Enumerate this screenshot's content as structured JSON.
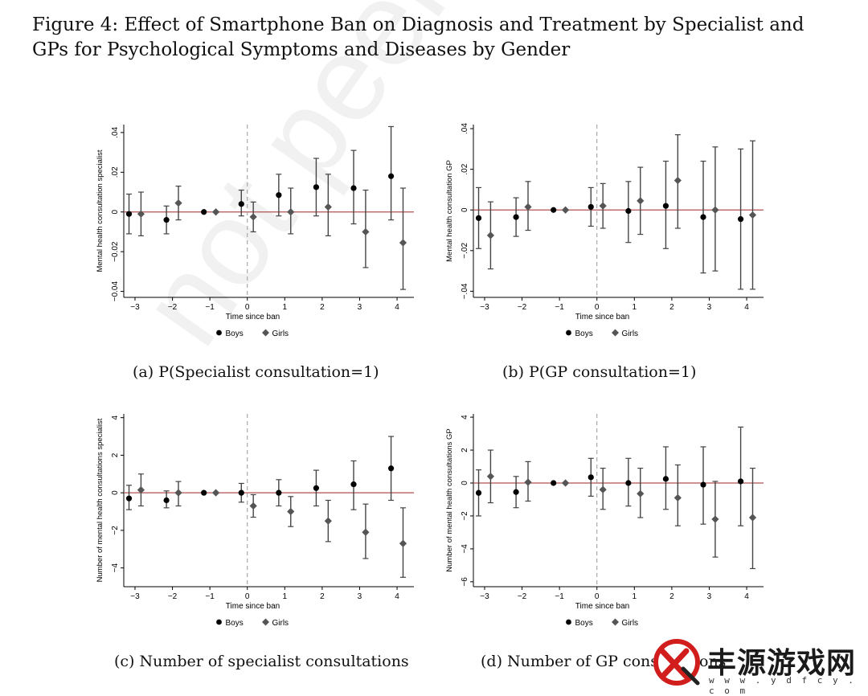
{
  "figure_title": "Figure 4: Effect of Smartphone Ban on Diagnosis and Treatment by Specialist and GPs for Psychological Symptoms and Diseases by Gender",
  "watermark": "not peer review",
  "logo": {
    "text": "丰源游戏网",
    "url": "w w w . y d f c y . c o m"
  },
  "colors": {
    "boys": "#000000",
    "girls": "#555555",
    "zero_line": "#b05050",
    "ban_line": "#999999",
    "ci": "#444444"
  },
  "chart_data": [
    {
      "type": "scatter",
      "caption": "(a) P(Specialist consultation=1)",
      "xlabel": "Time since ban",
      "ylabel": "Mental health consultation specialist",
      "x_ticks": [
        -3,
        -2,
        -1,
        0,
        1,
        2,
        3,
        4
      ],
      "y_ticks": [
        -0.04,
        -0.02,
        0,
        0.02,
        0.04
      ],
      "y_tick_labels": [
        "−0.04",
        "−0.02",
        "0",
        ".02",
        ".04"
      ],
      "ylim": [
        -0.043,
        0.044
      ],
      "legend_placement": "bottom",
      "series": [
        {
          "name": "Boys",
          "marker": "circle",
          "x": [
            -3,
            -2,
            -1,
            0,
            1,
            2,
            3,
            4
          ],
          "y": [
            -0.001,
            -0.004,
            0.0,
            0.004,
            0.0085,
            0.0125,
            0.012,
            0.018
          ],
          "lo": [
            -0.011,
            -0.011,
            0.0,
            -0.002,
            -0.002,
            -0.002,
            -0.006,
            -0.004
          ],
          "hi": [
            0.009,
            0.003,
            0.0,
            0.011,
            0.019,
            0.027,
            0.031,
            0.043
          ]
        },
        {
          "name": "Girls",
          "marker": "diamond",
          "x": [
            -3,
            -2,
            -1,
            0,
            1,
            2,
            3,
            4
          ],
          "y": [
            -0.001,
            0.0045,
            0.0,
            -0.0025,
            0.0,
            0.0025,
            -0.01,
            -0.0155
          ],
          "lo": [
            -0.012,
            -0.004,
            0.0,
            -0.01,
            -0.011,
            -0.012,
            -0.028,
            -0.039
          ],
          "hi": [
            0.01,
            0.013,
            0.0,
            0.005,
            0.012,
            0.019,
            0.011,
            0.012
          ]
        }
      ]
    },
    {
      "type": "scatter",
      "caption": "(b) P(GP consultation=1)",
      "xlabel": "Time since ban",
      "ylabel": "Mental health consultation GP",
      "x_ticks": [
        -3,
        -2,
        -1,
        0,
        1,
        2,
        3,
        4
      ],
      "y_ticks": [
        -0.04,
        -0.02,
        0,
        0.02,
        0.04
      ],
      "y_tick_labels": [
        "−.04",
        "−.02",
        "0",
        ".02",
        ".04"
      ],
      "ylim": [
        -0.043,
        0.042
      ],
      "legend_placement": "bottom",
      "series": [
        {
          "name": "Boys",
          "marker": "circle",
          "x": [
            -3,
            -2,
            -1,
            0,
            1,
            2,
            3,
            4
          ],
          "y": [
            -0.004,
            -0.0035,
            0.0,
            0.0015,
            -0.0005,
            0.002,
            -0.0035,
            -0.0045
          ],
          "lo": [
            -0.019,
            -0.013,
            0.0,
            -0.008,
            -0.016,
            -0.019,
            -0.031,
            -0.039
          ],
          "hi": [
            0.011,
            0.006,
            0.0,
            0.011,
            0.014,
            0.024,
            0.024,
            0.03
          ]
        },
        {
          "name": "Girls",
          "marker": "diamond",
          "x": [
            -3,
            -2,
            -1,
            0,
            1,
            2,
            3,
            4
          ],
          "y": [
            -0.0125,
            0.0015,
            0.0,
            0.002,
            0.0045,
            0.0145,
            0.0,
            -0.0025
          ],
          "lo": [
            -0.029,
            -0.01,
            0.0,
            -0.009,
            -0.012,
            -0.009,
            -0.03,
            -0.039
          ],
          "hi": [
            0.004,
            0.014,
            0.0,
            0.013,
            0.021,
            0.037,
            0.031,
            0.034
          ]
        }
      ]
    },
    {
      "type": "scatter",
      "caption": "(c) Number of specialist consultations",
      "xlabel": "Time since ban",
      "ylabel": "Number of mental health consultations specialist",
      "x_ticks": [
        -3,
        -2,
        -1,
        0,
        1,
        2,
        3,
        4
      ],
      "y_ticks": [
        -4,
        -2,
        0,
        2,
        4
      ],
      "y_tick_labels": [
        "−4",
        "−2",
        "0",
        "2",
        "4"
      ],
      "ylim": [
        -5.0,
        4.2
      ],
      "legend_placement": "bottom",
      "series": [
        {
          "name": "Boys",
          "marker": "circle",
          "x": [
            -3,
            -2,
            -1,
            0,
            1,
            2,
            3,
            4
          ],
          "y": [
            -0.3,
            -0.4,
            0.0,
            0.0,
            0.0,
            0.25,
            0.45,
            1.3
          ],
          "lo": [
            -0.9,
            -0.8,
            0.0,
            -0.5,
            -0.7,
            -0.7,
            -0.9,
            -0.4
          ],
          "hi": [
            0.4,
            0.1,
            0.0,
            0.5,
            0.7,
            1.2,
            1.7,
            3.0
          ]
        },
        {
          "name": "Girls",
          "marker": "diamond",
          "x": [
            -3,
            -2,
            -1,
            0,
            1,
            2,
            3,
            4
          ],
          "y": [
            0.15,
            0.0,
            0.0,
            -0.7,
            -1.0,
            -1.5,
            -2.1,
            -2.7
          ],
          "lo": [
            -0.7,
            -0.7,
            0.0,
            -1.3,
            -1.8,
            -2.6,
            -3.5,
            -4.5
          ],
          "hi": [
            1.0,
            0.6,
            0.0,
            -0.1,
            -0.2,
            -0.4,
            -0.6,
            -0.8
          ]
        }
      ]
    },
    {
      "type": "scatter",
      "caption": "(d) Number of GP consultations",
      "xlabel": "Time since ban",
      "ylabel": "Number of mental health consultations GP",
      "x_ticks": [
        -3,
        -2,
        -1,
        0,
        1,
        2,
        3,
        4
      ],
      "y_ticks": [
        -6,
        -4,
        -2,
        0,
        2,
        4
      ],
      "y_tick_labels": [
        "−6",
        "−4",
        "−2",
        "0",
        "2",
        "4"
      ],
      "ylim": [
        -6.3,
        4.2
      ],
      "legend_placement": "bottom",
      "series": [
        {
          "name": "Boys",
          "marker": "circle",
          "x": [
            -3,
            -2,
            -1,
            0,
            1,
            2,
            3,
            4
          ],
          "y": [
            -0.6,
            -0.55,
            0.0,
            0.35,
            0.0,
            0.25,
            -0.1,
            0.1
          ],
          "lo": [
            -2.0,
            -1.5,
            0.0,
            -0.8,
            -1.4,
            -1.6,
            -2.5,
            -2.6
          ],
          "hi": [
            0.8,
            0.4,
            0.0,
            1.5,
            1.5,
            2.2,
            2.2,
            3.4
          ]
        },
        {
          "name": "Girls",
          "marker": "diamond",
          "x": [
            -3,
            -2,
            -1,
            0,
            1,
            2,
            3,
            4
          ],
          "y": [
            0.4,
            0.05,
            0.0,
            -0.4,
            -0.65,
            -0.9,
            -2.2,
            -2.1
          ],
          "lo": [
            -1.2,
            -1.1,
            0.0,
            -1.6,
            -2.1,
            -2.6,
            -4.5,
            -5.2
          ],
          "hi": [
            2.0,
            1.3,
            0.0,
            0.9,
            0.9,
            1.1,
            0.1,
            0.9
          ]
        }
      ]
    }
  ]
}
